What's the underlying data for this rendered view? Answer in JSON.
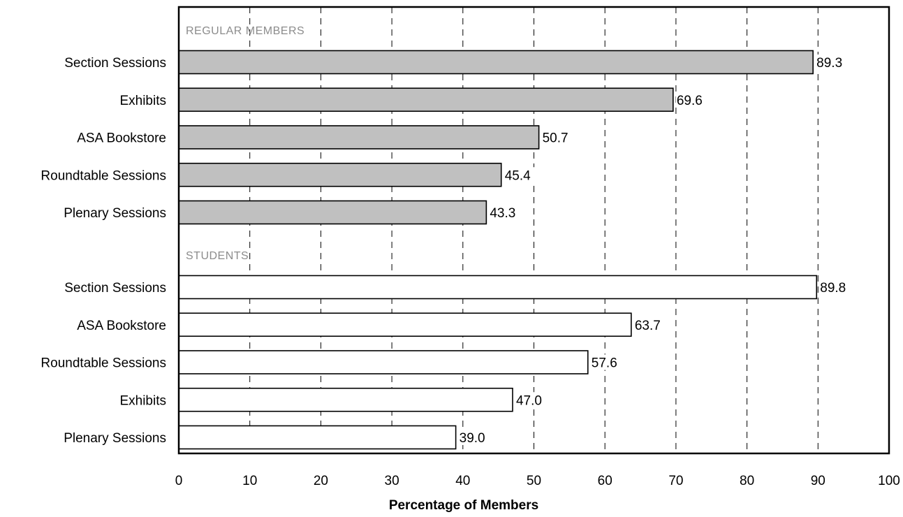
{
  "chart_data": {
    "type": "bar",
    "orientation": "horizontal",
    "xlabel": "Percentage of Members",
    "xlim": [
      0,
      100
    ],
    "xticks": [
      "0",
      "10",
      "20",
      "30",
      "40",
      "50",
      "60",
      "70",
      "80",
      "90",
      "100"
    ],
    "grid": "vertical dashed",
    "groups": [
      {
        "name": "REGULAR MEMBERS",
        "color": "#c0c0c0",
        "categories": [
          "Section Sessions",
          "Exhibits",
          "ASA Bookstore",
          "Roundtable Sessions",
          "Plenary Sessions"
        ],
        "values": [
          89.3,
          69.6,
          50.7,
          45.4,
          43.3
        ],
        "labels": [
          "89.3",
          "69.6",
          "50.7",
          "45.4",
          "43.3"
        ]
      },
      {
        "name": "STUDENTS",
        "color": "#ffffff",
        "categories": [
          "Section Sessions",
          "ASA Bookstore",
          "Roundtable Sessions",
          "Exhibits",
          "Plenary Sessions"
        ],
        "values": [
          89.8,
          63.7,
          57.6,
          47.0,
          39.0
        ],
        "labels": [
          "89.8",
          "63.7",
          "57.6",
          "47.0",
          "39.0"
        ]
      }
    ]
  }
}
